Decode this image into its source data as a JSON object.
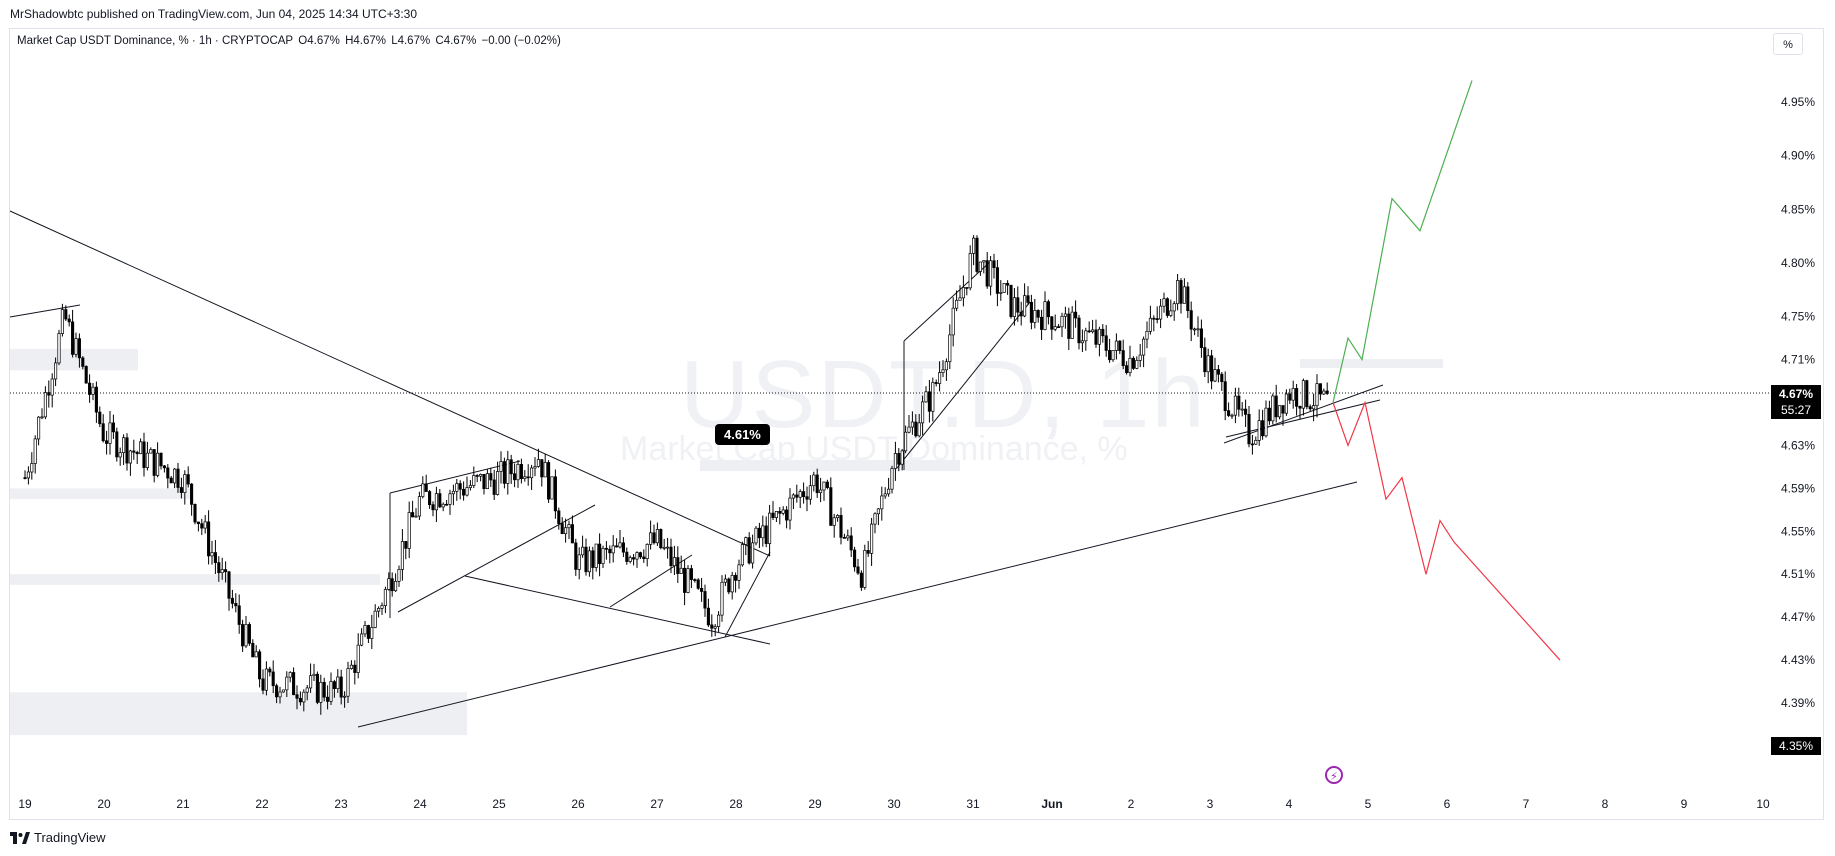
{
  "header": {
    "published": "MrShadowbtc published on TradingView.com, Jun 04, 2025 14:34 UTC+3:30"
  },
  "legend": {
    "symbol": "Market Cap USDT Dominance, % · 1h · CRYPTOCAP",
    "open": "O4.67%",
    "high": "H4.67%",
    "low": "L4.67%",
    "close": "C4.67%",
    "change": "−0.00 (−0.02%)"
  },
  "scale_button": "%",
  "watermark": {
    "ticker": "USDT.D, 1h",
    "name": "Market Cap USDT Dominance, %"
  },
  "callout": "4.61%",
  "current_price": {
    "value": "4.67%",
    "countdown": "55:27"
  },
  "low_tag": "4.35%",
  "footer": {
    "brand": "TradingView",
    "logo_icon": "tradingview-logo-icon"
  },
  "colors": {
    "bull": "#4caf50",
    "bear": "#f23645",
    "candle": "#000000",
    "zone": "#eeeff2"
  },
  "chart_data": {
    "type": "candlestick",
    "title": "Market Cap USDT Dominance, %",
    "interval": "1h",
    "y_ticks": [
      "4.95%",
      "4.90%",
      "4.85%",
      "4.80%",
      "4.75%",
      "4.71%",
      "4.63%",
      "4.59%",
      "4.55%",
      "4.51%",
      "4.47%",
      "4.43%",
      "4.39%"
    ],
    "y_tick_values": [
      4.95,
      4.9,
      4.85,
      4.8,
      4.75,
      4.71,
      4.63,
      4.59,
      4.55,
      4.51,
      4.47,
      4.43,
      4.39
    ],
    "x_ticks": [
      "19",
      "20",
      "21",
      "22",
      "23",
      "24",
      "25",
      "26",
      "27",
      "28",
      "29",
      "30",
      "31",
      "Jun",
      "2",
      "3",
      "4",
      "5",
      "6",
      "7",
      "8",
      "9",
      "10"
    ],
    "ylim": [
      4.34,
      4.98
    ],
    "approx_closes_by_day": [
      {
        "day": "19",
        "close": 4.6
      },
      {
        "day": "19.5",
        "close": 4.75
      },
      {
        "day": "20",
        "close": 4.64
      },
      {
        "day": "21",
        "close": 4.6
      },
      {
        "day": "22",
        "close": 4.41
      },
      {
        "day": "23",
        "close": 4.4
      },
      {
        "day": "23.6",
        "close": 4.5
      },
      {
        "day": "24",
        "close": 4.58
      },
      {
        "day": "25",
        "close": 4.6
      },
      {
        "day": "25.5",
        "close": 4.62
      },
      {
        "day": "26",
        "close": 4.52
      },
      {
        "day": "27",
        "close": 4.54
      },
      {
        "day": "27.7",
        "close": 4.47
      },
      {
        "day": "28",
        "close": 4.52
      },
      {
        "day": "29",
        "close": 4.6
      },
      {
        "day": "29.6",
        "close": 4.51
      },
      {
        "day": "30",
        "close": 4.62
      },
      {
        "day": "30.5",
        "close": 4.68
      },
      {
        "day": "31",
        "close": 4.81
      },
      {
        "day": "31.5",
        "close": 4.76
      },
      {
        "day": "Jun",
        "close": 4.75
      },
      {
        "day": "2",
        "close": 4.71
      },
      {
        "day": "2.6",
        "close": 4.78
      },
      {
        "day": "3",
        "close": 4.7
      },
      {
        "day": "3.5",
        "close": 4.64
      },
      {
        "day": "4",
        "close": 4.68
      },
      {
        "day": "4.5",
        "close": 4.67
      }
    ],
    "bull_scenario": [
      4.67,
      4.73,
      4.71,
      4.86,
      4.83,
      4.97
    ],
    "bear_scenario": [
      4.67,
      4.63,
      4.67,
      4.58,
      4.6,
      4.51,
      4.56,
      4.54,
      4.43
    ],
    "zones": [
      {
        "from": 4.7,
        "to": 4.72
      },
      {
        "from": 4.58,
        "to": 4.59
      },
      {
        "from": 4.5,
        "to": 4.51
      },
      {
        "from": 4.36,
        "to": 4.4
      }
    ]
  }
}
